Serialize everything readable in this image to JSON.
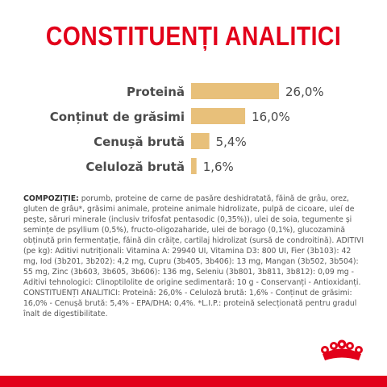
{
  "header": {
    "title": "CONSTITUENȚI ANALITICI"
  },
  "colors": {
    "brand_red": "#e2001a",
    "bar": "#e8c07a",
    "text": "#4a4a4a"
  },
  "chart_data": {
    "type": "bar",
    "orientation": "horizontal",
    "title": "CONSTITUENȚI ANALITICI",
    "categories": [
      "Proteină",
      "Conținut de grăsimi",
      "Cenușă brută",
      "Celuloză brută"
    ],
    "values": [
      26.0,
      16.0,
      5.4,
      1.6
    ],
    "value_labels": [
      "26,0%",
      "16,0%",
      "5,4%",
      "1,6%"
    ],
    "unit": "%",
    "xlim": [
      0,
      26.0
    ],
    "grid": false,
    "legend": "none"
  },
  "composition": {
    "heading": "COMPOZIȚIE:",
    "text": " porumb, proteine de carne de pasăre deshidratată, făină de grâu, orez, gluten de grâu*, grăsimi animale, proteine animale hidrolizate, pulpă de cicoare, uleí de pește, săruri minerale (inclusiv trifosfat pentasodic (0,35%)), ulei de soia, tegumente și semințe de psyllium (0,5%), fructo-oligozaharide, ulei de borago (0,1%), glucozamină obținută prin fermentație, făină din crăițe, cartilaj hidrolizat (sursă de condroitină). ADITIVI (pe kg): Aditivi nutriționali: Vitamina A: 29940 UI, Vitamina D3: 800 UI, Fier (3b103): 42 mg, Iod (3b201, 3b202): 4,2 mg, Cupru (3b405, 3b406): 13 mg, Mangan (3b502, 3b504): 55 mg, Zinc (3b603, 3b605, 3b606): 136 mg, Seleniu (3b801, 3b811, 3b812): 0,09 mg - Aditivi tehnologici: Clinoptilolite de origine sedimentară: 10 g - Conservanți - Antioxidanți. CONSTITUENȚI ANALITICI: Proteină: 26,0% - Celuloză brută: 1,6% - Conținut de grăsimi: 16,0% - Cenușă brută: 5,4% - EPA/DHA: 0,4%. *L.I.P.: proteină selecționată pentru gradul înalt de digestibilitate."
  },
  "logo": {
    "icon": "crown-icon"
  }
}
